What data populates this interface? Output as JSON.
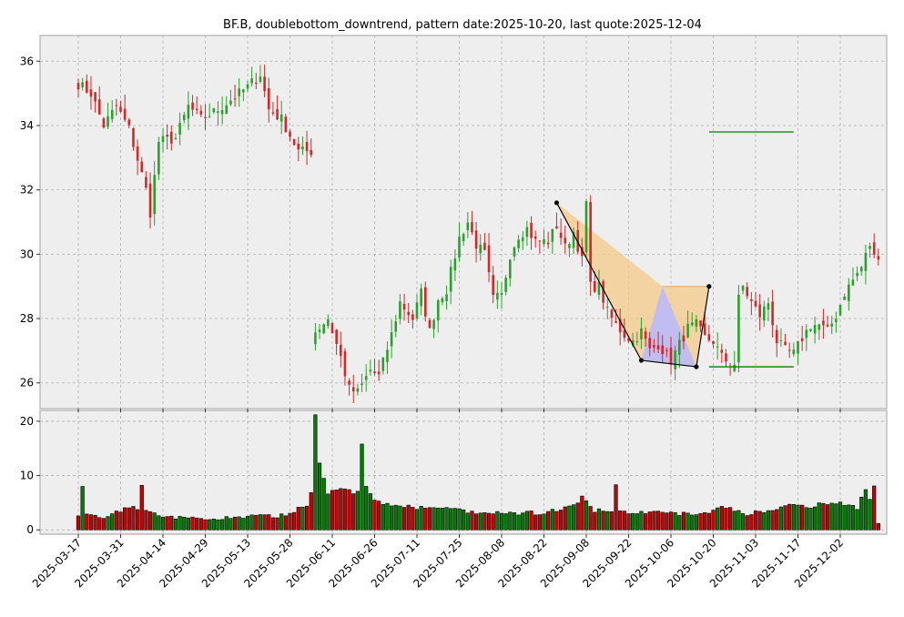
{
  "chart_data": {
    "type": "candlestick",
    "title": "BF.B, doublebottom_downtrend, pattern date:2025-10-20, last quote:2025-12-04",
    "price_axis": {
      "ylim": [
        25.2,
        36.8
      ],
      "ticks": [
        26,
        28,
        30,
        32,
        34,
        36
      ]
    },
    "volume_axis": {
      "ylim": [
        -0.8,
        22
      ],
      "ticks": [
        0,
        10,
        20
      ]
    },
    "x_ticks": [
      "2025-03-17",
      "2025-03-31",
      "2025-04-14",
      "2025-04-29",
      "2025-05-13",
      "2025-05-28",
      "2025-06-11",
      "2025-06-26",
      "2025-07-11",
      "2025-07-25",
      "2025-08-08",
      "2025-08-22",
      "2025-09-08",
      "2025-09-22",
      "2025-10-06",
      "2025-10-20",
      "2025-11-03",
      "2025-11-17",
      "2025-12-02"
    ],
    "tick_spacing_bars": 10,
    "n_bars": 190,
    "close_anchors": [
      [
        0,
        35.3
      ],
      [
        3,
        35.0
      ],
      [
        6,
        34.0
      ],
      [
        9,
        34.6
      ],
      [
        12,
        33.9
      ],
      [
        16,
        32.0
      ],
      [
        17,
        31.3
      ],
      [
        19,
        33.5
      ],
      [
        23,
        33.6
      ],
      [
        26,
        34.6
      ],
      [
        29,
        34.2
      ],
      [
        33,
        34.5
      ],
      [
        36,
        34.8
      ],
      [
        40,
        35.2
      ],
      [
        43,
        35.6
      ],
      [
        45,
        34.5
      ],
      [
        48,
        34.2
      ],
      [
        52,
        33.2
      ],
      [
        55,
        33.2
      ],
      [
        56,
        27.6
      ],
      [
        59,
        28.0
      ],
      [
        62,
        26.8
      ],
      [
        64,
        25.8
      ],
      [
        66,
        25.7
      ],
      [
        69,
        26.4
      ],
      [
        71,
        26.2
      ],
      [
        74,
        27.5
      ],
      [
        76,
        28.5
      ],
      [
        79,
        28.0
      ],
      [
        81,
        28.8
      ],
      [
        83,
        27.6
      ],
      [
        85,
        28.6
      ],
      [
        87,
        28.9
      ],
      [
        90,
        30.5
      ],
      [
        92,
        31.0
      ],
      [
        94,
        30.3
      ],
      [
        96,
        30.0
      ],
      [
        98,
        28.6
      ],
      [
        100,
        28.7
      ],
      [
        102,
        30.0
      ],
      [
        104,
        30.6
      ],
      [
        106,
        30.8
      ],
      [
        108,
        30.4
      ],
      [
        111,
        30.4
      ],
      [
        113,
        30.9
      ],
      [
        115,
        30.2
      ],
      [
        117,
        30.7
      ],
      [
        119,
        29.8
      ],
      [
        120,
        31.6
      ],
      [
        121,
        29.0
      ],
      [
        123,
        29.0
      ],
      [
        125,
        28.2
      ],
      [
        127,
        27.8
      ],
      [
        129,
        27.5
      ],
      [
        131,
        27.3
      ],
      [
        133,
        27.6
      ],
      [
        135,
        27.0
      ],
      [
        137,
        27.2
      ],
      [
        140,
        26.7
      ],
      [
        142,
        27.2
      ],
      [
        144,
        27.7
      ],
      [
        146,
        27.8
      ],
      [
        148,
        27.4
      ],
      [
        150,
        27.3
      ],
      [
        152,
        26.8
      ],
      [
        154,
        26.6
      ],
      [
        155,
        26.6
      ],
      [
        156,
        28.6
      ],
      [
        157,
        29.0
      ],
      [
        159,
        28.5
      ],
      [
        161,
        28.1
      ],
      [
        163,
        28.5
      ],
      [
        165,
        27.3
      ],
      [
        167,
        27.0
      ],
      [
        169,
        26.9
      ],
      [
        171,
        27.4
      ],
      [
        173,
        27.8
      ],
      [
        175,
        27.8
      ],
      [
        177,
        27.6
      ],
      [
        179,
        28.1
      ],
      [
        181,
        28.8
      ],
      [
        183,
        29.2
      ],
      [
        185,
        29.6
      ],
      [
        187,
        30.3
      ],
      [
        188,
        29.9
      ],
      [
        189,
        30.0
      ]
    ],
    "volume_anchors": [
      [
        0,
        2.8
      ],
      [
        6,
        2.5
      ],
      [
        10,
        3.5
      ],
      [
        13,
        4.2
      ],
      [
        16,
        3.8
      ],
      [
        20,
        2.2
      ],
      [
        30,
        2.0
      ],
      [
        40,
        2.4
      ],
      [
        49,
        2.6
      ],
      [
        52,
        4.0
      ],
      [
        54,
        4.2
      ],
      [
        55,
        7.2
      ],
      [
        56,
        21.2
      ],
      [
        57,
        12.3
      ],
      [
        58,
        9.5
      ],
      [
        59,
        6.5
      ],
      [
        62,
        8.0
      ],
      [
        65,
        6.8
      ],
      [
        66,
        6.8
      ],
      [
        67,
        15.8
      ],
      [
        68,
        7.8
      ],
      [
        70,
        5.2
      ],
      [
        75,
        4.5
      ],
      [
        80,
        4.0
      ],
      [
        85,
        4.2
      ],
      [
        90,
        3.5
      ],
      [
        95,
        3.0
      ],
      [
        100,
        3.0
      ],
      [
        105,
        3.1
      ],
      [
        110,
        3.1
      ],
      [
        115,
        4.0
      ],
      [
        118,
        4.6
      ],
      [
        119,
        6.5
      ],
      [
        120,
        5.2
      ],
      [
        122,
        3.5
      ],
      [
        130,
        3.3
      ],
      [
        135,
        3.0
      ],
      [
        140,
        3.2
      ],
      [
        145,
        2.8
      ],
      [
        150,
        3.5
      ],
      [
        152,
        4.5
      ],
      [
        158,
        3.0
      ],
      [
        165,
        3.6
      ],
      [
        168,
        4.8
      ],
      [
        172,
        4.2
      ],
      [
        175,
        4.6
      ],
      [
        180,
        5.0
      ],
      [
        184,
        4.0
      ],
      [
        186,
        7.8
      ],
      [
        187,
        6.0
      ],
      [
        188,
        8.0
      ],
      [
        189,
        0.8
      ]
    ],
    "volume_spikes": [
      [
        1,
        8.0
      ],
      [
        15,
        8.2
      ],
      [
        56,
        21.2
      ],
      [
        57,
        12.3
      ],
      [
        58,
        9.5
      ],
      [
        67,
        15.8
      ],
      [
        127,
        8.3
      ]
    ],
    "pattern_line": [
      [
        113,
        31.6
      ],
      [
        133,
        26.7
      ],
      [
        146,
        26.5
      ],
      [
        149,
        29.0
      ]
    ],
    "pattern_fill_orange": [
      [
        113,
        31.6
      ],
      [
        133,
        26.7
      ],
      [
        146,
        26.5
      ],
      [
        149,
        29.0
      ],
      [
        138,
        29.0
      ]
    ],
    "pattern_fill_blue": [
      [
        133,
        26.7
      ],
      [
        146,
        26.5
      ],
      [
        138,
        29.0
      ]
    ],
    "resistance_box": {
      "x_start": 138,
      "x_end": 149,
      "price": 29.0
    },
    "target_line": {
      "x_start": 149,
      "x_end": 169,
      "price": 33.8
    },
    "support_line": {
      "x_start": 149,
      "x_end": 169,
      "price": 26.5
    },
    "colors": {
      "up": "#2ca02c",
      "down": "#d62728",
      "line": "#000000",
      "target": "#008000",
      "fill_orange": "#f5c98a",
      "fill_blue": "#b9b9ff",
      "panel_bg": "#eeeeee"
    }
  }
}
